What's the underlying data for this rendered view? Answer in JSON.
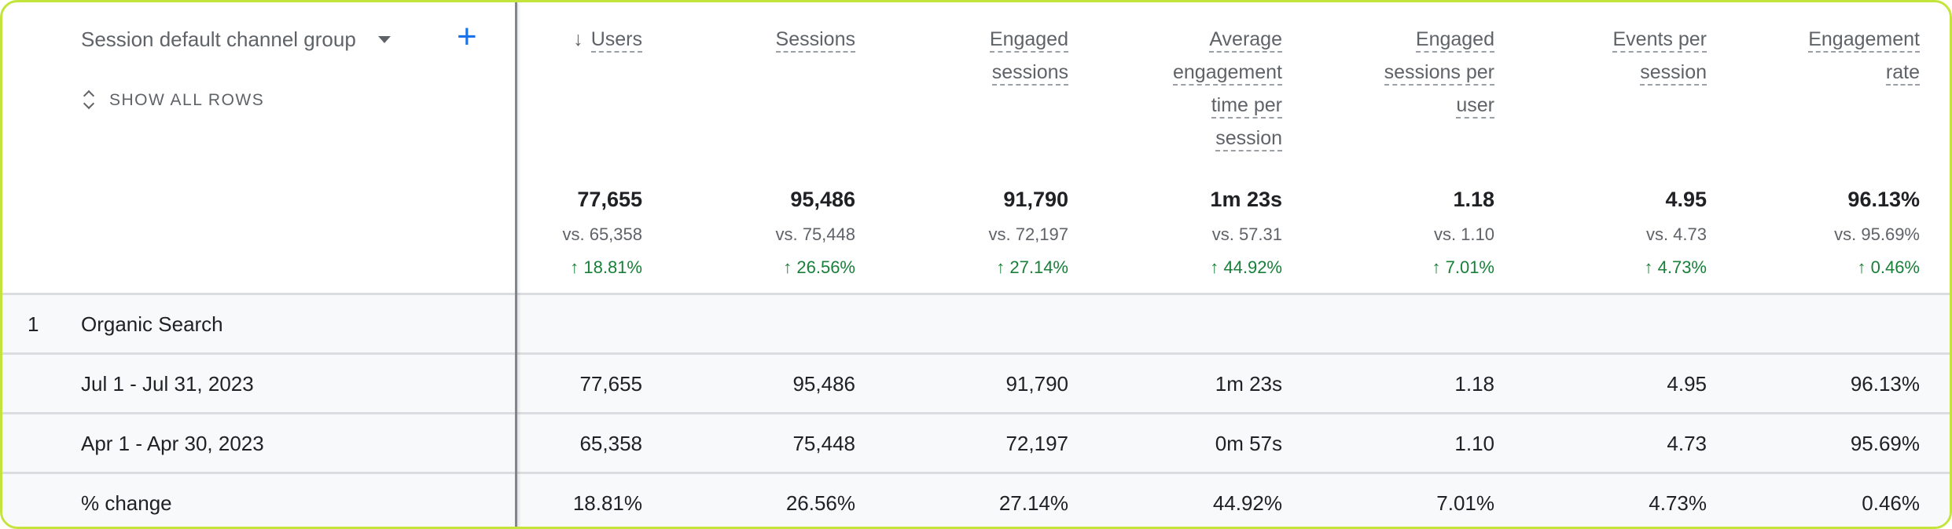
{
  "dimension": {
    "label": "Session default channel group",
    "show_all_rows": "SHOW ALL ROWS"
  },
  "columns": [
    {
      "label": [
        "Users"
      ],
      "sorted": true,
      "total": "77,655",
      "vs": "vs. 65,358",
      "change": "18.81%"
    },
    {
      "label": [
        "Sessions"
      ],
      "total": "95,486",
      "vs": "vs. 75,448",
      "change": "26.56%"
    },
    {
      "label": [
        "Engaged",
        "sessions"
      ],
      "total": "91,790",
      "vs": "vs. 72,197",
      "change": "27.14%"
    },
    {
      "label": [
        "Average",
        "engagement",
        "time per",
        "session"
      ],
      "total": "1m 23s",
      "vs": "vs. 57.31",
      "change": "44.92%"
    },
    {
      "label": [
        "Engaged",
        "sessions per",
        "user"
      ],
      "total": "1.18",
      "vs": "vs. 1.10",
      "change": "7.01%"
    },
    {
      "label": [
        "Events per",
        "session"
      ],
      "total": "4.95",
      "vs": "vs. 4.73",
      "change": "4.73%"
    },
    {
      "label": [
        "Engagement",
        "rate"
      ],
      "total": "96.13%",
      "vs": "vs. 95.69%",
      "change": "0.46%"
    }
  ],
  "rows": [
    {
      "index": "1",
      "label": "Organic Search",
      "values": []
    },
    {
      "label": "Jul 1 - Jul 31, 2023",
      "values": [
        "77,655",
        "95,486",
        "91,790",
        "1m 23s",
        "1.18",
        "4.95",
        "96.13%"
      ]
    },
    {
      "label": "Apr 1 - Apr 30, 2023",
      "values": [
        "65,358",
        "75,448",
        "72,197",
        "0m 57s",
        "1.10",
        "4.73",
        "95.69%"
      ]
    },
    {
      "label": "% change",
      "values": [
        "18.81%",
        "26.56%",
        "27.14%",
        "44.92%",
        "7.01%",
        "4.73%",
        "0.46%"
      ]
    }
  ],
  "colors": {
    "accent": "#1a73e8",
    "positive": "#188038",
    "frame": "#c3e43b"
  }
}
